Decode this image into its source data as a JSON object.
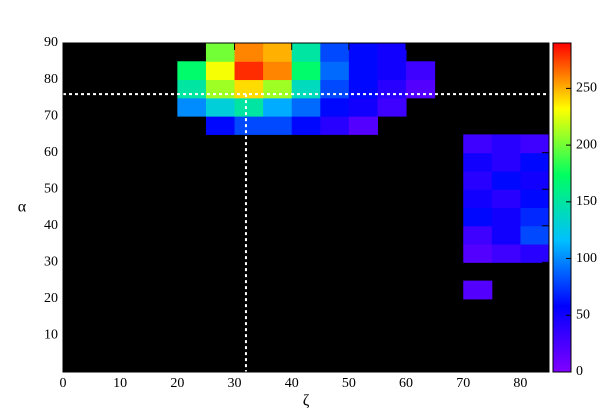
{
  "chart_data": {
    "type": "heatmap",
    "x_label": "ζ",
    "y_label": "α",
    "xlim": [
      0,
      85
    ],
    "ylim": [
      0,
      90
    ],
    "xticks": [
      0,
      10,
      20,
      30,
      40,
      50,
      60,
      70,
      80
    ],
    "yticks": [
      10,
      20,
      30,
      40,
      50,
      60,
      70,
      80,
      90
    ],
    "xbins": [
      0,
      5,
      10,
      15,
      20,
      25,
      30,
      35,
      40,
      45,
      50,
      55,
      60,
      65,
      70,
      75,
      80,
      85
    ],
    "ybins": [
      0,
      5,
      10,
      15,
      20,
      25,
      30,
      35,
      40,
      45,
      50,
      55,
      60,
      65,
      70,
      75,
      80,
      85,
      90
    ],
    "z": [
      [
        null,
        null,
        null,
        null,
        null,
        null,
        null,
        null,
        null,
        null,
        null,
        null,
        null,
        null,
        null,
        null,
        null
      ],
      [
        null,
        null,
        null,
        null,
        null,
        null,
        null,
        null,
        null,
        null,
        null,
        null,
        null,
        null,
        null,
        null,
        null
      ],
      [
        null,
        null,
        null,
        null,
        null,
        null,
        null,
        null,
        null,
        null,
        null,
        null,
        null,
        null,
        null,
        null,
        null
      ],
      [
        null,
        null,
        null,
        null,
        null,
        null,
        null,
        null,
        null,
        null,
        null,
        null,
        null,
        null,
        null,
        null,
        null
      ],
      [
        null,
        null,
        null,
        null,
        null,
        null,
        null,
        null,
        null,
        null,
        null,
        null,
        null,
        null,
        20,
        null,
        null
      ],
      [
        null,
        null,
        null,
        null,
        null,
        null,
        null,
        null,
        null,
        null,
        null,
        null,
        null,
        null,
        null,
        null,
        null
      ],
      [
        null,
        null,
        null,
        null,
        null,
        null,
        null,
        null,
        null,
        null,
        null,
        null,
        null,
        null,
        20,
        30,
        40
      ],
      [
        null,
        null,
        null,
        null,
        null,
        null,
        null,
        null,
        null,
        null,
        null,
        null,
        null,
        null,
        30,
        50,
        80
      ],
      [
        null,
        null,
        null,
        null,
        null,
        null,
        null,
        null,
        null,
        null,
        null,
        null,
        null,
        null,
        60,
        50,
        70
      ],
      [
        null,
        null,
        null,
        null,
        null,
        null,
        null,
        null,
        null,
        null,
        null,
        null,
        null,
        null,
        50,
        40,
        60
      ],
      [
        null,
        null,
        null,
        null,
        null,
        null,
        null,
        null,
        null,
        null,
        null,
        null,
        null,
        null,
        40,
        60,
        50
      ],
      [
        null,
        null,
        null,
        null,
        null,
        null,
        null,
        null,
        null,
        null,
        null,
        null,
        null,
        null,
        50,
        40,
        60
      ],
      [
        null,
        null,
        null,
        null,
        null,
        null,
        null,
        null,
        null,
        null,
        null,
        null,
        null,
        null,
        30,
        40,
        30
      ],
      [
        null,
        null,
        null,
        null,
        null,
        60,
        80,
        80,
        60,
        40,
        20,
        null,
        null,
        null,
        null,
        null,
        null
      ],
      [
        null,
        null,
        null,
        null,
        100,
        130,
        150,
        110,
        90,
        60,
        50,
        30,
        null,
        null,
        null,
        null,
        null
      ],
      [
        null,
        null,
        null,
        null,
        150,
        210,
        240,
        210,
        140,
        80,
        60,
        40,
        20,
        null,
        null,
        null,
        null
      ],
      [
        null,
        null,
        null,
        null,
        170,
        230,
        280,
        260,
        170,
        90,
        60,
        50,
        30,
        null,
        null,
        null,
        null
      ],
      [
        null,
        null,
        null,
        null,
        null,
        200,
        260,
        250,
        150,
        80,
        60,
        50,
        null,
        null,
        null,
        null,
        null
      ]
    ],
    "clim": [
      0,
      290
    ],
    "cticks": [
      0,
      50,
      100,
      150,
      200,
      250
    ],
    "colormap": [
      "#8000ff",
      "#0000ff",
      "#00c0ff",
      "#00ff60",
      "#ffff00",
      "#ff0000"
    ],
    "background": "#000000",
    "reference_lines": {
      "x": 32,
      "y": 76
    }
  }
}
